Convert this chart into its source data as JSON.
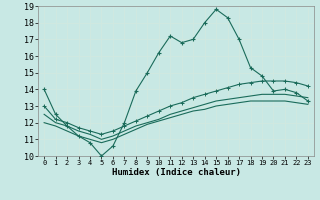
{
  "xlabel": "Humidex (Indice chaleur)",
  "bg_color": "#c8e8e4",
  "grid_color": "#d0e8e0",
  "line_color": "#1a6b5a",
  "xlim": [
    -0.5,
    23.5
  ],
  "ylim": [
    10,
    19
  ],
  "xticks": [
    0,
    1,
    2,
    3,
    4,
    5,
    6,
    7,
    8,
    9,
    10,
    11,
    12,
    13,
    14,
    15,
    16,
    17,
    18,
    19,
    20,
    21,
    22,
    23
  ],
  "yticks": [
    10,
    11,
    12,
    13,
    14,
    15,
    16,
    17,
    18,
    19
  ],
  "line_main_x": [
    0,
    1,
    2,
    3,
    4,
    5,
    6,
    7,
    8,
    9,
    10,
    11,
    12,
    13,
    14,
    15,
    16,
    17,
    18,
    19,
    20,
    21,
    22,
    23
  ],
  "line_main_y": [
    14.0,
    12.5,
    11.8,
    11.2,
    10.8,
    10.0,
    10.6,
    12.0,
    13.9,
    15.0,
    16.2,
    17.2,
    16.8,
    17.0,
    18.0,
    18.8,
    18.3,
    17.0,
    15.3,
    14.8,
    13.9,
    14.0,
    13.8,
    13.3
  ],
  "line2_x": [
    0,
    1,
    2,
    3,
    4,
    5,
    6,
    7,
    8,
    9,
    10,
    11,
    12,
    13,
    14,
    15,
    16,
    17,
    18,
    19,
    20,
    21,
    22,
    23
  ],
  "line2_y": [
    13.0,
    12.2,
    12.0,
    11.7,
    11.5,
    11.3,
    11.5,
    11.8,
    12.1,
    12.4,
    12.7,
    13.0,
    13.2,
    13.5,
    13.7,
    13.9,
    14.1,
    14.3,
    14.4,
    14.5,
    14.5,
    14.5,
    14.4,
    14.2
  ],
  "line3_x": [
    0,
    1,
    2,
    3,
    4,
    5,
    6,
    7,
    8,
    9,
    10,
    11,
    12,
    13,
    14,
    15,
    16,
    17,
    18,
    19,
    20,
    21,
    22,
    23
  ],
  "line3_y": [
    12.5,
    12.0,
    11.8,
    11.5,
    11.3,
    11.0,
    11.2,
    11.5,
    11.8,
    12.0,
    12.2,
    12.5,
    12.7,
    12.9,
    13.1,
    13.3,
    13.4,
    13.5,
    13.6,
    13.7,
    13.7,
    13.7,
    13.6,
    13.5
  ],
  "line4_x": [
    0,
    1,
    2,
    3,
    4,
    5,
    6,
    7,
    8,
    9,
    10,
    11,
    12,
    13,
    14,
    15,
    16,
    17,
    18,
    19,
    20,
    21,
    22,
    23
  ],
  "line4_y": [
    12.0,
    11.8,
    11.5,
    11.2,
    11.0,
    10.8,
    11.0,
    11.3,
    11.6,
    11.9,
    12.1,
    12.3,
    12.5,
    12.7,
    12.8,
    13.0,
    13.1,
    13.2,
    13.3,
    13.3,
    13.3,
    13.3,
    13.2,
    13.1
  ]
}
